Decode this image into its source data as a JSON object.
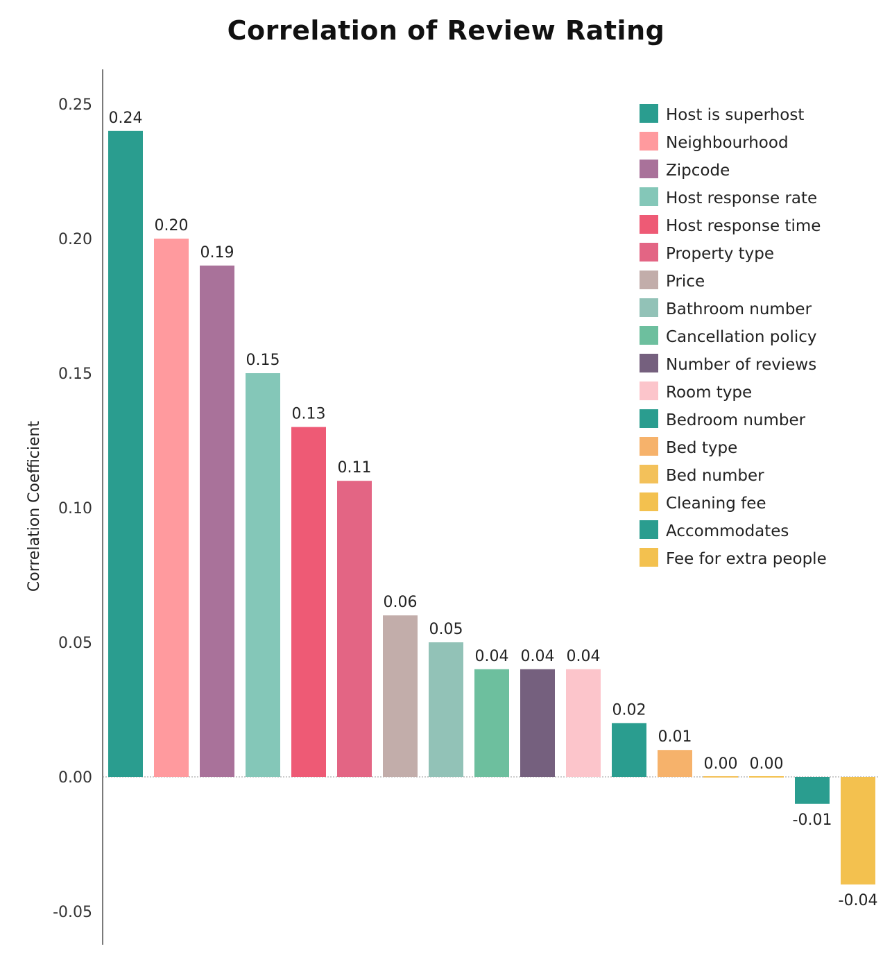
{
  "chart_data": {
    "type": "bar",
    "title": "Correlation of Review Rating",
    "ylabel": "Correlation Coefficient",
    "xlabel": "",
    "ylim": [
      -0.06,
      0.26
    ],
    "yticks": [
      -0.05,
      0.0,
      0.05,
      0.1,
      0.15,
      0.2,
      0.25
    ],
    "ytick_labels": [
      "-0.05",
      "0.00",
      "0.05",
      "0.10",
      "0.15",
      "0.20",
      "0.25"
    ],
    "grid": false,
    "legend_position": "top-right",
    "categories": [
      "Host is superhost",
      "Neighbourhood",
      "Zipcode",
      "Host response rate",
      "Host response time",
      "Property type",
      "Price",
      "Bathroom number",
      "Cancellation policy",
      "Number of reviews",
      "Room type",
      "Bedroom number",
      "Bed type",
      "Bed number",
      "Cleaning fee",
      "Accommodates",
      "Fee for extra people"
    ],
    "values": [
      0.24,
      0.2,
      0.19,
      0.15,
      0.13,
      0.11,
      0.06,
      0.05,
      0.04,
      0.04,
      0.04,
      0.02,
      0.01,
      0.0,
      0.0,
      -0.01,
      -0.04
    ],
    "value_labels": [
      "0.24",
      "0.20",
      "0.19",
      "0.15",
      "0.13",
      "0.11",
      "0.06",
      "0.05",
      "0.04",
      "0.04",
      "0.04",
      "0.02",
      "0.01",
      "0.00",
      "0.00",
      "-0.01",
      "-0.04"
    ],
    "colors": [
      "#2a9d8f",
      "#ff9a9e",
      "#a9729a",
      "#84c7b8",
      "#ee5a75",
      "#e36584",
      "#c2adaa",
      "#92c2b7",
      "#6dbf9e",
      "#75607e",
      "#fcc5cb",
      "#2a9d8f",
      "#f6b26b",
      "#f3c15a",
      "#f3c14f",
      "#2a9d8f",
      "#f3c14f"
    ]
  }
}
